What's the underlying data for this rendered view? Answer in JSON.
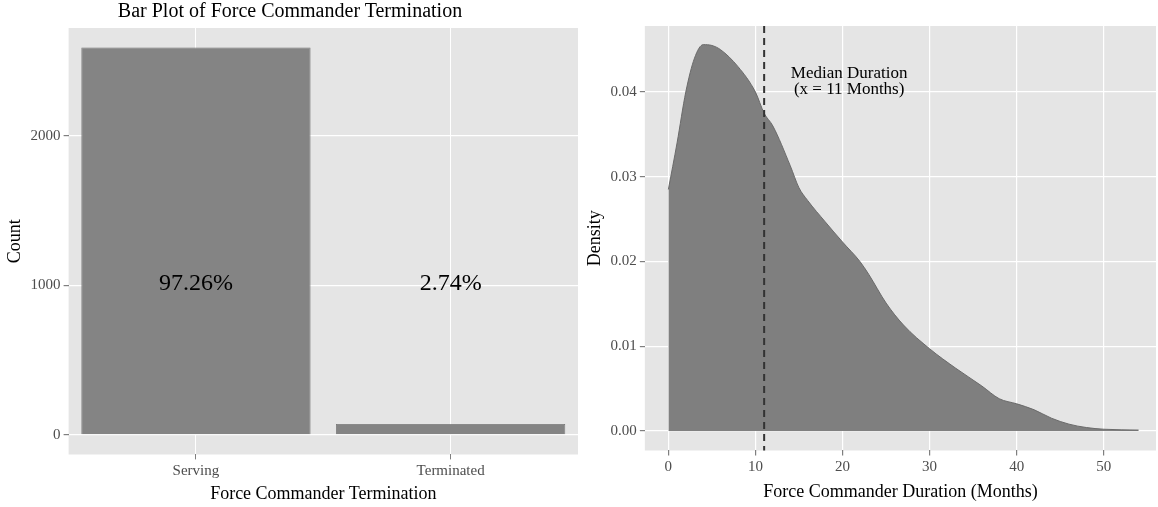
{
  "chart_data": [
    {
      "type": "bar",
      "title": "Bar Plot of Force Commander Termination",
      "xlabel": "Force Commander Termination",
      "ylabel": "Count",
      "categories": [
        "Serving",
        "Terminated"
      ],
      "values": [
        2590,
        73
      ],
      "color": "#848484",
      "ylim": [
        -130,
        2720
      ],
      "yticks": [
        0,
        1000,
        2000
      ],
      "grid": true,
      "annotations": [
        "97.26%",
        "2.74%"
      ]
    },
    {
      "type": "area",
      "xlabel": "Force Commander Duration (Months)",
      "ylabel": "Density",
      "color": "#7f7f7f",
      "grid": true,
      "x": [
        0,
        1,
        2,
        3,
        4,
        5,
        6,
        8,
        10,
        11,
        12,
        14,
        15,
        16,
        18,
        20,
        22,
        23,
        25,
        27,
        30,
        33,
        36,
        38,
        40,
        42,
        44,
        46,
        48,
        50,
        54
      ],
      "values": [
        0.0285,
        0.034,
        0.04,
        0.044,
        0.0456,
        0.0455,
        0.045,
        0.043,
        0.04,
        0.0375,
        0.036,
        0.0313,
        0.0287,
        0.0272,
        0.0247,
        0.0223,
        0.02,
        0.0185,
        0.0151,
        0.0125,
        0.0097,
        0.0074,
        0.0053,
        0.0038,
        0.0032,
        0.0025,
        0.0015,
        0.0008,
        0.0004,
        0.0002,
        0.0001
      ],
      "xlim": [
        -2.7,
        56
      ],
      "xticks": [
        0,
        10,
        20,
        30,
        40,
        50
      ],
      "ylim": [
        -0.0023,
        0.0478
      ],
      "yticks": [
        {
          "value": 0,
          "label": "0.00"
        },
        {
          "value": 0.01,
          "label": "0.01"
        },
        {
          "value": 0.02,
          "label": "0.02"
        },
        {
          "value": 0.03,
          "label": "0.03"
        },
        {
          "value": 0.04,
          "label": "0.04"
        }
      ],
      "ref_lines": [
        {
          "axis": "x",
          "value": 11,
          "color": "#333333",
          "line_style": "dashed",
          "label": "Median Duration\n(x = 11 Months)"
        }
      ]
    }
  ]
}
